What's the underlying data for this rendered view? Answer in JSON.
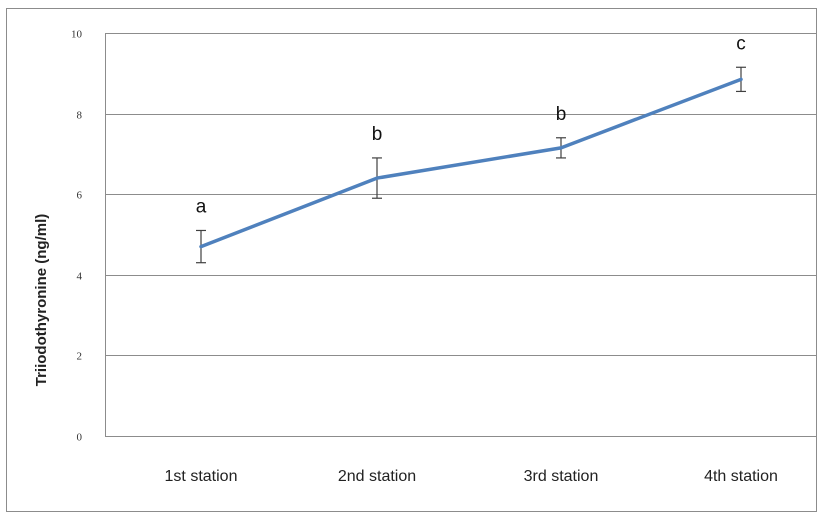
{
  "chart_data": {
    "type": "line",
    "title": "",
    "xlabel": "",
    "ylabel": "Triiodothyronine (ng/ml)",
    "categories": [
      "1st station",
      "2nd station",
      "3rd station",
      "4th station"
    ],
    "series": [
      {
        "values": [
          4.7,
          6.4,
          7.15,
          8.85
        ],
        "error": [
          0.4,
          0.5,
          0.25,
          0.3
        ],
        "significance_labels": [
          "a",
          "b",
          "b",
          "c"
        ]
      }
    ],
    "ylim": [
      0,
      10
    ],
    "yticks": [
      "0",
      "2",
      "4",
      "6",
      "8",
      "10"
    ],
    "grid": true,
    "legend": "none",
    "line_color": "#4f81bd",
    "error_bar_color": "#404040"
  }
}
